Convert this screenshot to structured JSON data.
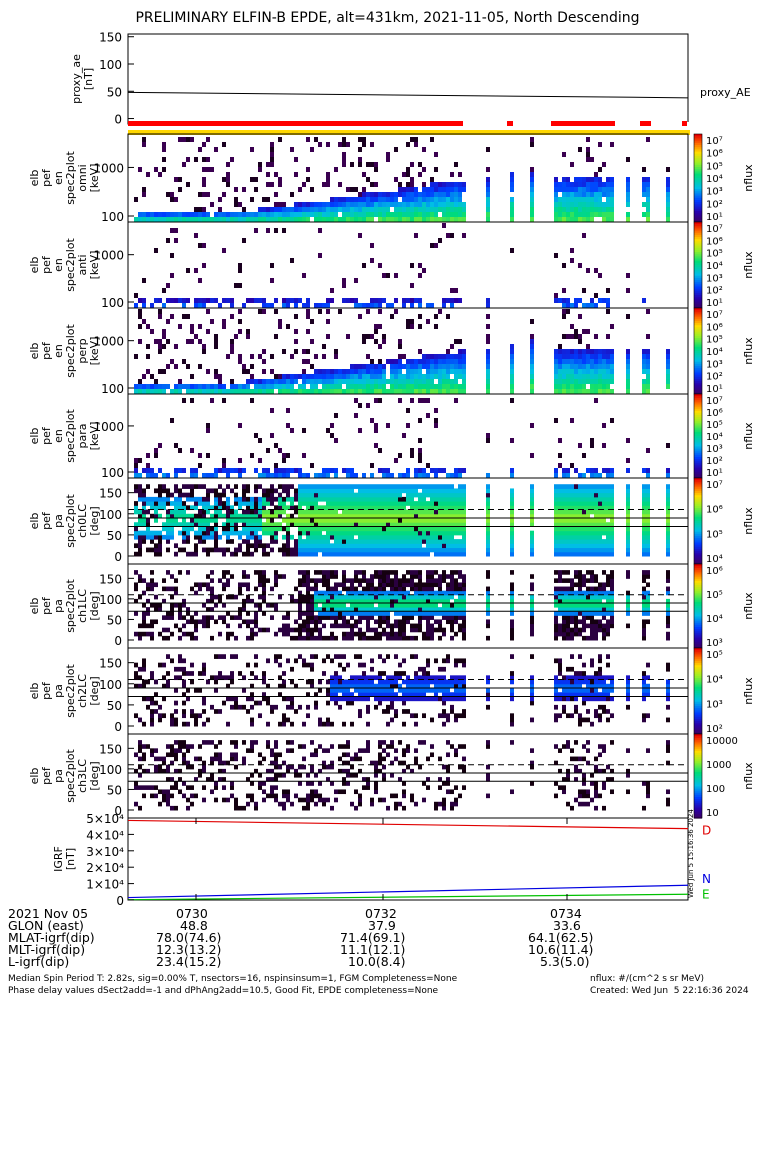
{
  "title": "PRELIMINARY ELFIN-B EPDE, alt=431km, 2021-11-05, North Descending",
  "chart_data": [
    {
      "type": "line",
      "panel": "proxy_ae",
      "ylabel": [
        "proxy_ae",
        "[nT]"
      ],
      "yticks": [
        "150",
        "100",
        "50",
        "0"
      ],
      "ylim": [
        -10,
        155
      ],
      "series": [
        {
          "name": "proxy_AE",
          "x": [
            0,
            1
          ],
          "values": [
            48,
            38
          ]
        }
      ]
    },
    {
      "type": "heatmap",
      "panel": "elb pef en spec2plot omni",
      "ylabel": [
        "elb",
        "pef",
        "en",
        "spec2plot",
        "omni",
        "[keV]"
      ],
      "yticks": [
        "1000",
        "100"
      ],
      "cbar_label": "nflux",
      "cbar_ticks": [
        "10⁷",
        "10⁶",
        "10⁵",
        "10⁴",
        "10³",
        "10²",
        "10¹"
      ]
    },
    {
      "type": "heatmap",
      "panel": "elb pef en spec2plot anti",
      "ylabel": [
        "elb",
        "pef",
        "en",
        "spec2plot",
        "anti",
        "[keV]"
      ],
      "yticks": [
        "1000",
        "100"
      ],
      "cbar_label": "nflux",
      "cbar_ticks": [
        "10⁷",
        "10⁶",
        "10⁵",
        "10⁴",
        "10³",
        "10²",
        "10¹"
      ]
    },
    {
      "type": "heatmap",
      "panel": "elb pef en spec2plot perp",
      "ylabel": [
        "elb",
        "pef",
        "en",
        "spec2plot",
        "perp",
        "[keV]"
      ],
      "yticks": [
        "1000",
        "100"
      ],
      "cbar_label": "nflux",
      "cbar_ticks": [
        "10⁷",
        "10⁶",
        "10⁵",
        "10⁴",
        "10³",
        "10²",
        "10¹"
      ]
    },
    {
      "type": "heatmap",
      "panel": "elb pef en spec2plot para",
      "ylabel": [
        "elb",
        "pef",
        "en",
        "spec2plot",
        "para",
        "[keV]"
      ],
      "yticks": [
        "1000",
        "100"
      ],
      "cbar_label": "nflux",
      "cbar_ticks": [
        "10⁷",
        "10⁶",
        "10⁵",
        "10⁴",
        "10³",
        "10²",
        "10¹"
      ]
    },
    {
      "type": "heatmap",
      "panel": "elb pef pa spec2plot ch0LC",
      "ylabel": [
        "elb",
        "pef",
        "pa",
        "spec2plot",
        "ch0LC",
        "[deg]"
      ],
      "yticks": [
        "150",
        "100",
        "50",
        "0"
      ],
      "cbar_label": "nflux",
      "cbar_ticks": [
        "10⁷",
        "10⁶",
        "10⁵",
        "10⁴"
      ]
    },
    {
      "type": "heatmap",
      "panel": "elb pef pa spec2plot ch1LC",
      "ylabel": [
        "elb",
        "pef",
        "pa",
        "spec2plot",
        "ch1LC",
        "[deg]"
      ],
      "yticks": [
        "150",
        "100",
        "50",
        "0"
      ],
      "cbar_label": "nflux",
      "cbar_ticks": [
        "10⁶",
        "10⁵",
        "10⁴",
        "10³"
      ]
    },
    {
      "type": "heatmap",
      "panel": "elb pef pa spec2plot ch2LC",
      "ylabel": [
        "elb",
        "pef",
        "pa",
        "spec2plot",
        "ch2LC",
        "[deg]"
      ],
      "yticks": [
        "150",
        "100",
        "50",
        "0"
      ],
      "cbar_label": "nflux",
      "cbar_ticks": [
        "10⁵",
        "10⁴",
        "10³",
        "10²"
      ]
    },
    {
      "type": "heatmap",
      "panel": "elb pef pa spec2plot ch3LC",
      "ylabel": [
        "elb",
        "pef",
        "pa",
        "spec2plot",
        "ch3LC",
        "[deg]"
      ],
      "yticks": [
        "150",
        "100",
        "50",
        "0"
      ],
      "cbar_label": "nflux",
      "cbar_ticks": [
        "10000",
        "1000",
        "100",
        "10"
      ]
    },
    {
      "type": "line",
      "panel": "IGRF",
      "ylabel": [
        "IGRF",
        "[nT]"
      ],
      "yticks": [
        "5×10⁴",
        "4×10⁴",
        "3×10⁴",
        "2×10⁴",
        "1×10⁴",
        "0"
      ],
      "ylim": [
        0,
        50000
      ],
      "series": [
        {
          "name": "D",
          "color": "#e00000",
          "x": [
            0,
            1
          ],
          "values": [
            48500,
            43500
          ]
        },
        {
          "name": "N",
          "color": "#0000e0",
          "x": [
            0,
            1
          ],
          "values": [
            1500,
            9000
          ]
        },
        {
          "name": "E",
          "color": "#00c000",
          "x": [
            0,
            1
          ],
          "values": [
            200,
            3500
          ]
        }
      ],
      "side_text": "Wed Jun  5 15:16:36 2024"
    }
  ],
  "xticks": [
    "0730",
    "0732",
    "0734"
  ],
  "table": {
    "rows": [
      {
        "label": "2021 Nov 05",
        "v": [
          "0730",
          "0732",
          "0734"
        ]
      },
      {
        "label": "GLON (east)",
        "v": [
          "48.8",
          "37.9",
          "33.6"
        ]
      },
      {
        "label": "MLAT-igrf(dip)",
        "v": [
          "78.0(74.6)",
          "71.4(69.1)",
          "64.1(62.5)"
        ]
      },
      {
        "label": "MLT-igrf(dip)",
        "v": [
          "12.3(13.2)",
          "11.1(12.1)",
          "10.6(11.4)"
        ]
      },
      {
        "label": "L-igrf(dip)",
        "v": [
          "23.4(15.2)",
          "10.0(8.4)",
          "5.3(5.0)"
        ]
      }
    ]
  },
  "footer": {
    "line1": "Median Spin Period T: 2.82s, sig=0.00% T, nsectors=16, nspinsinsum=1, FGM Completeness=None",
    "line2": "Phase delay values dSect2add=-1 and dPhAng2add=10.5, Good Fit, EPDE completeness=None",
    "units": "nflux: #/(cm^2 s sr MeV)",
    "created": "Created: Wed Jun  5 22:16:36 2024"
  },
  "colors": {
    "data_bar": "#ff0000",
    "status_bar": "#ffd700"
  }
}
